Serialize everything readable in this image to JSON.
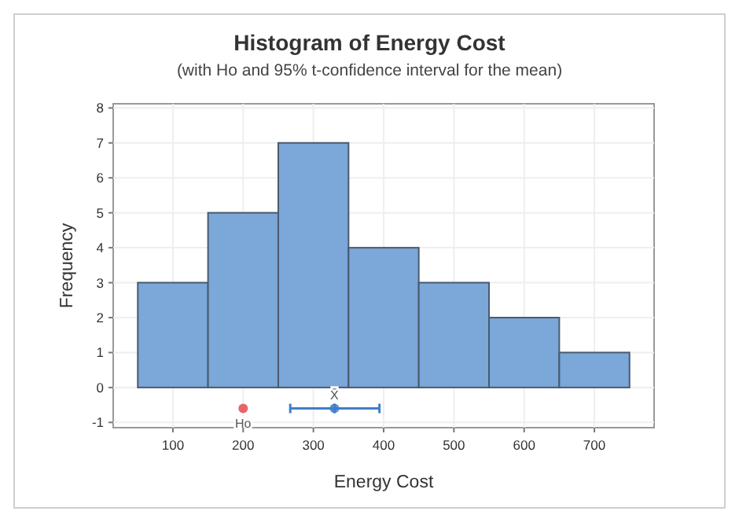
{
  "chart_data": {
    "type": "histogram",
    "title": "Histogram of Energy Cost",
    "subtitle": "(with Ho and 95% t-confidence interval for the mean)",
    "xlabel": "Energy Cost",
    "ylabel": "Frequency",
    "bins": [
      50,
      150,
      250,
      350,
      450,
      550,
      650,
      750
    ],
    "values": [
      3,
      5,
      7,
      4,
      3,
      2,
      1
    ],
    "color": "#7ba7d9",
    "series": [
      {
        "type": "scatter",
        "name": "Ho",
        "color": "#e8474c",
        "marker": "circle",
        "x": [
          200
        ],
        "values": [
          -0.6
        ]
      },
      {
        "type": "scatter",
        "name": "X̄",
        "color": "#3f7fc6",
        "marker": "circle",
        "x": [
          330
        ],
        "values": [
          -0.6
        ],
        "xerrors": [
          [
            267,
            394
          ]
        ]
      }
    ],
    "xlim": [
      15,
      785
    ],
    "ylim": [
      -1.15,
      8.12
    ],
    "xticks": [
      100,
      200,
      300,
      400,
      500,
      600,
      700
    ],
    "yticks": [
      -1,
      0,
      1,
      2,
      3,
      4,
      5,
      6,
      7,
      8
    ],
    "grid": true
  }
}
